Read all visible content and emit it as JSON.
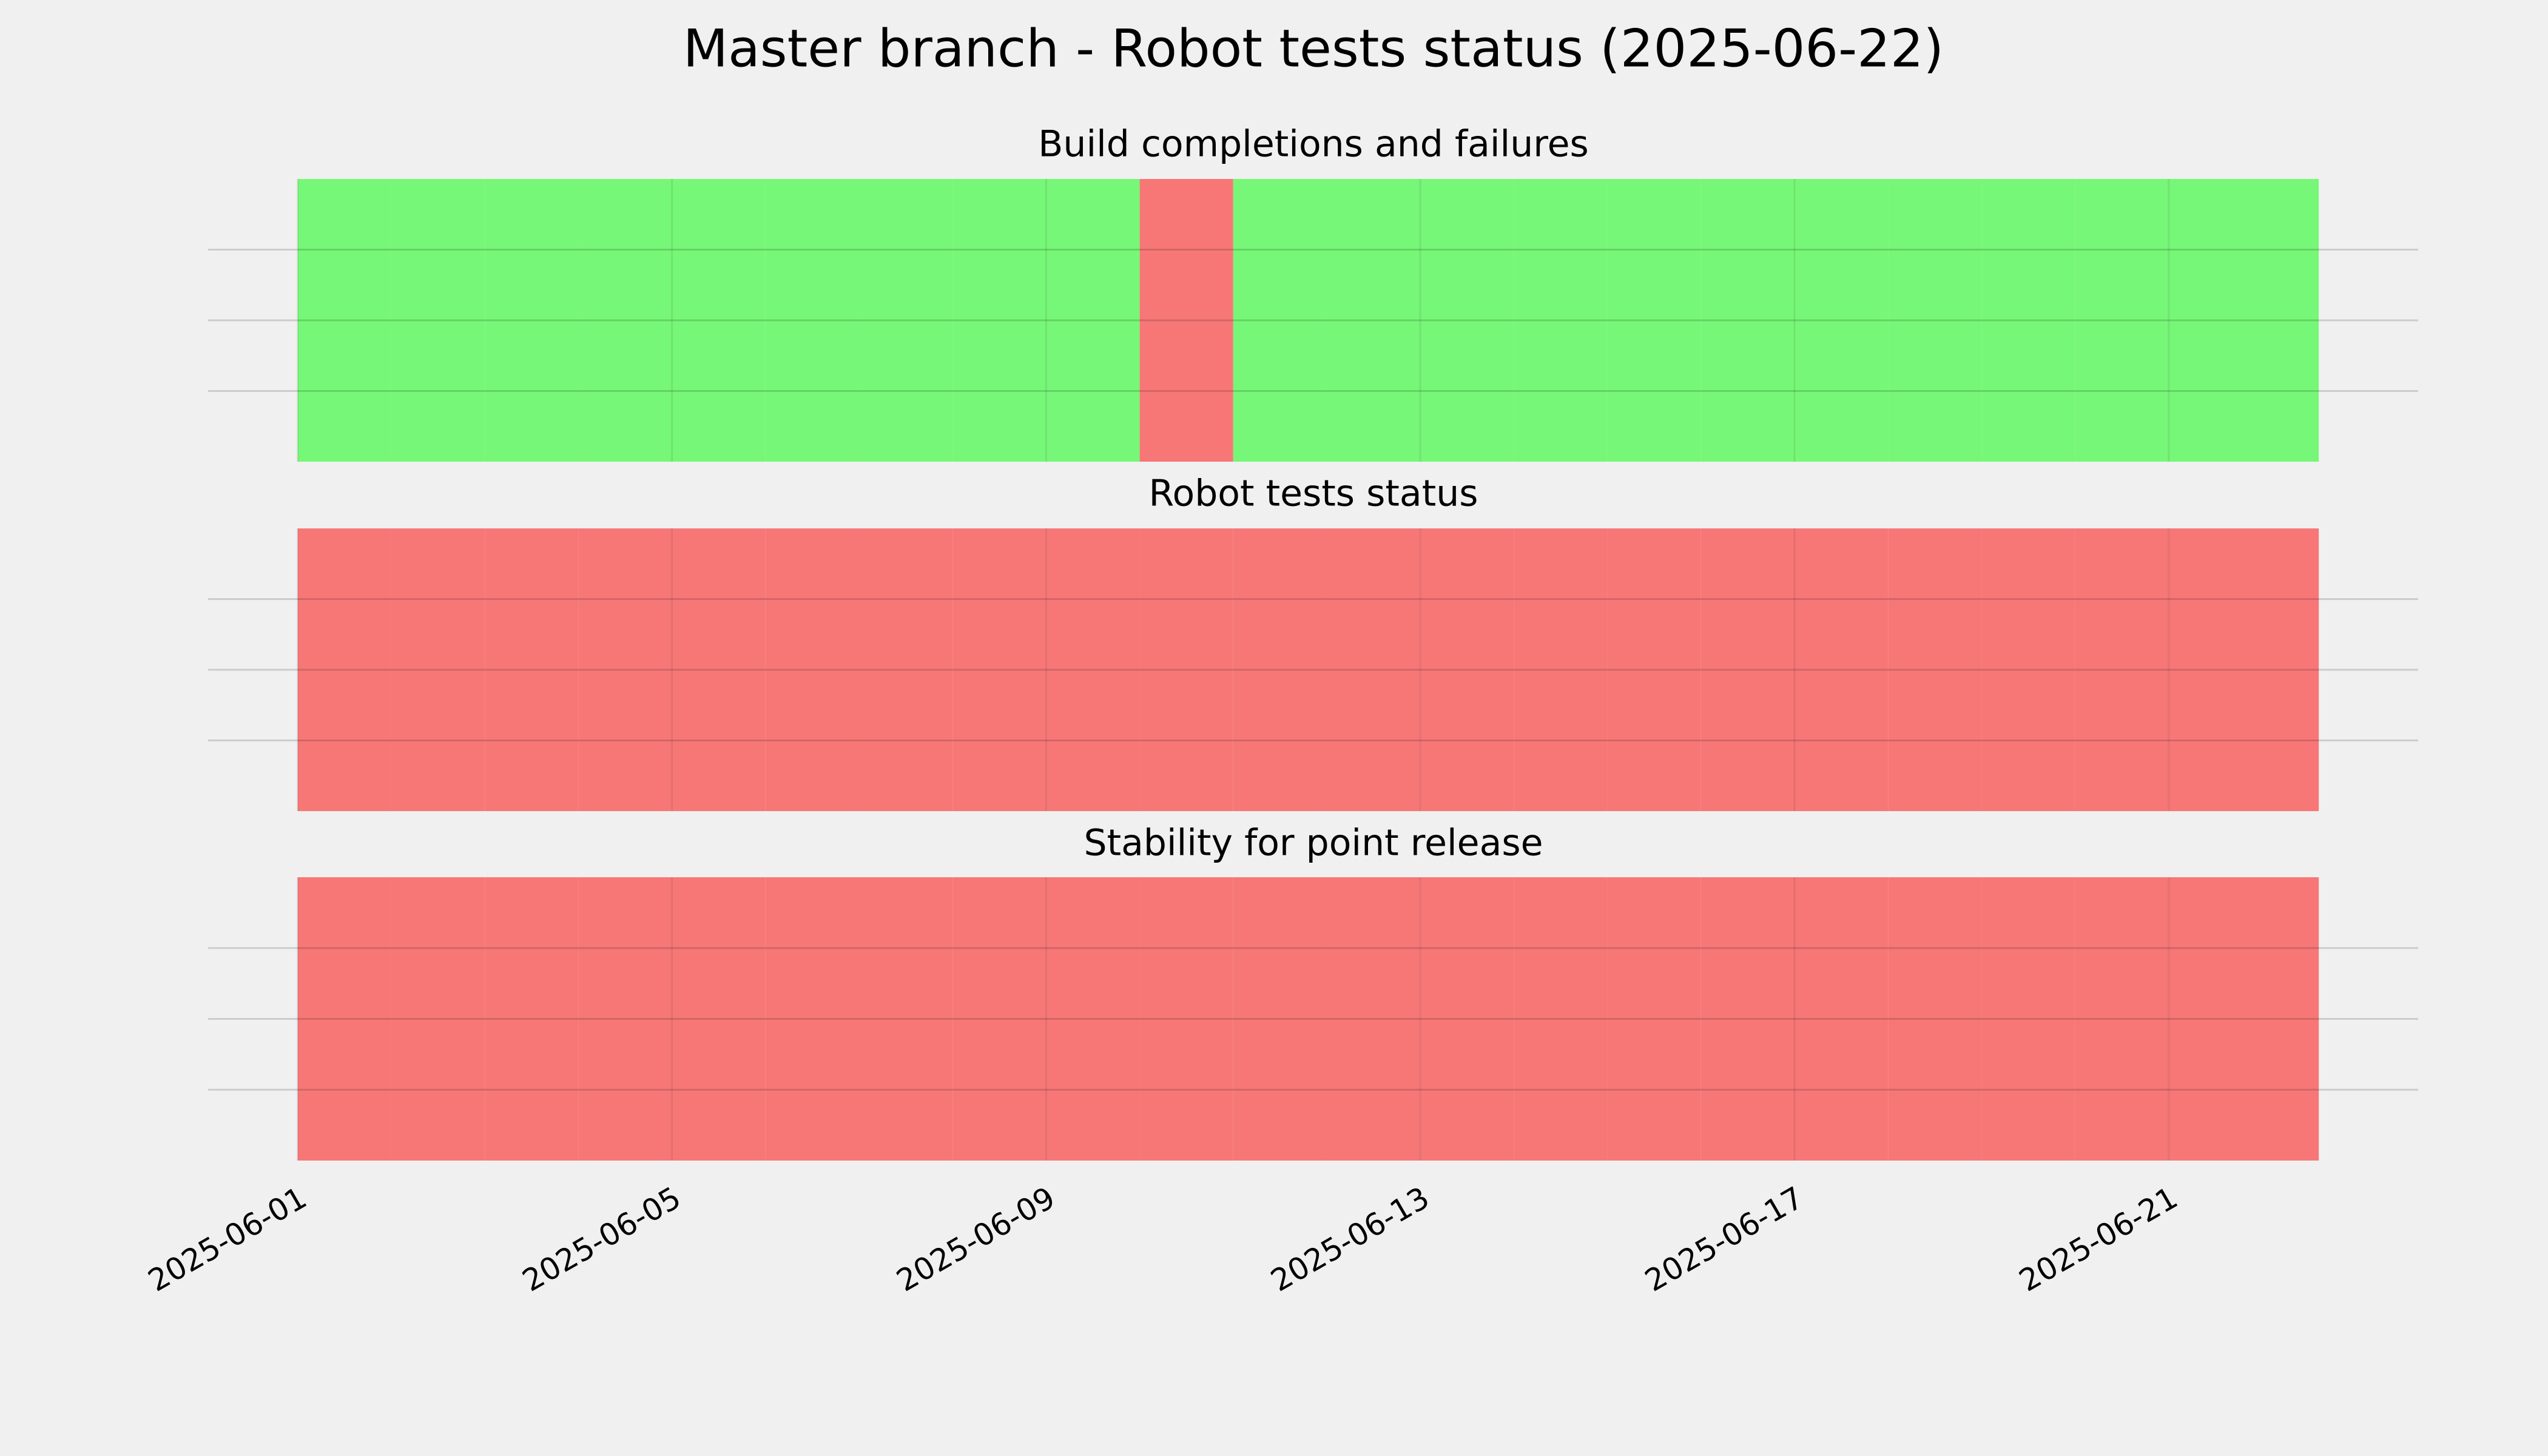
{
  "title": "Master branch - Robot tests status (2025-06-22)",
  "chart_data": [
    {
      "type": "timeline",
      "title": "Build completions and failures",
      "x": [
        "2025-06-01",
        "2025-06-02",
        "2025-06-03",
        "2025-06-04",
        "2025-06-05",
        "2025-06-06",
        "2025-06-07",
        "2025-06-08",
        "2025-06-09",
        "2025-06-10",
        "2025-06-11",
        "2025-06-12",
        "2025-06-13",
        "2025-06-14",
        "2025-06-15",
        "2025-06-16",
        "2025-06-17",
        "2025-06-18",
        "2025-06-19",
        "2025-06-20",
        "2025-06-21",
        "2025-06-22"
      ],
      "x_end": "2025-06-22T14:30",
      "values": [
        "pass",
        "pass",
        "pass",
        "pass",
        "pass",
        "pass",
        "pass",
        "pass",
        "pass",
        "fail",
        "pass",
        "pass",
        "pass",
        "pass",
        "pass",
        "pass",
        "pass",
        "pass",
        "pass",
        "pass",
        "pass",
        "pass"
      ],
      "colors": {
        "pass": "#77f777",
        "fail": "#f77777"
      },
      "xlim": [
        "2025-05-31T01:00",
        "2025-06-23T16:00"
      ],
      "ylim": [
        0,
        1
      ],
      "yticks": [
        0.25,
        0.5,
        0.75
      ],
      "grid": true
    },
    {
      "type": "timeline",
      "title": "Robot tests status",
      "x": [
        "2025-06-01",
        "2025-06-02",
        "2025-06-03",
        "2025-06-04",
        "2025-06-05",
        "2025-06-06",
        "2025-06-07",
        "2025-06-08",
        "2025-06-09",
        "2025-06-10",
        "2025-06-11",
        "2025-06-12",
        "2025-06-13",
        "2025-06-14",
        "2025-06-15",
        "2025-06-16",
        "2025-06-17",
        "2025-06-18",
        "2025-06-19",
        "2025-06-20",
        "2025-06-21",
        "2025-06-22"
      ],
      "x_end": "2025-06-22T14:30",
      "values": [
        "fail",
        "fail",
        "fail",
        "fail",
        "fail",
        "fail",
        "fail",
        "fail",
        "fail",
        "fail",
        "fail",
        "fail",
        "fail",
        "fail",
        "fail",
        "fail",
        "fail",
        "fail",
        "fail",
        "fail",
        "fail",
        "fail"
      ],
      "colors": {
        "pass": "#77f777",
        "fail": "#f77777"
      },
      "xlim": [
        "2025-05-31T01:00",
        "2025-06-23T16:00"
      ],
      "ylim": [
        0,
        1
      ],
      "yticks": [
        0.25,
        0.5,
        0.75
      ],
      "grid": true
    },
    {
      "type": "timeline",
      "title": "Stability for point release",
      "x": [
        "2025-06-01",
        "2025-06-02",
        "2025-06-03",
        "2025-06-04",
        "2025-06-05",
        "2025-06-06",
        "2025-06-07",
        "2025-06-08",
        "2025-06-09",
        "2025-06-10",
        "2025-06-11",
        "2025-06-12",
        "2025-06-13",
        "2025-06-14",
        "2025-06-15",
        "2025-06-16",
        "2025-06-17",
        "2025-06-18",
        "2025-06-19",
        "2025-06-20",
        "2025-06-21",
        "2025-06-22"
      ],
      "x_end": "2025-06-22T14:30",
      "values": [
        "fail",
        "fail",
        "fail",
        "fail",
        "fail",
        "fail",
        "fail",
        "fail",
        "fail",
        "fail",
        "fail",
        "fail",
        "fail",
        "fail",
        "fail",
        "fail",
        "fail",
        "fail",
        "fail",
        "fail",
        "fail",
        "fail"
      ],
      "colors": {
        "pass": "#77f777",
        "fail": "#f77777"
      },
      "xlim": [
        "2025-05-31T01:00",
        "2025-06-23T16:00"
      ],
      "ylim": [
        0,
        1
      ],
      "yticks": [
        0.25,
        0.5,
        0.75
      ],
      "grid": true,
      "xticks": [
        "2025-06-01",
        "2025-06-05",
        "2025-06-09",
        "2025-06-13",
        "2025-06-17",
        "2025-06-21"
      ]
    }
  ]
}
